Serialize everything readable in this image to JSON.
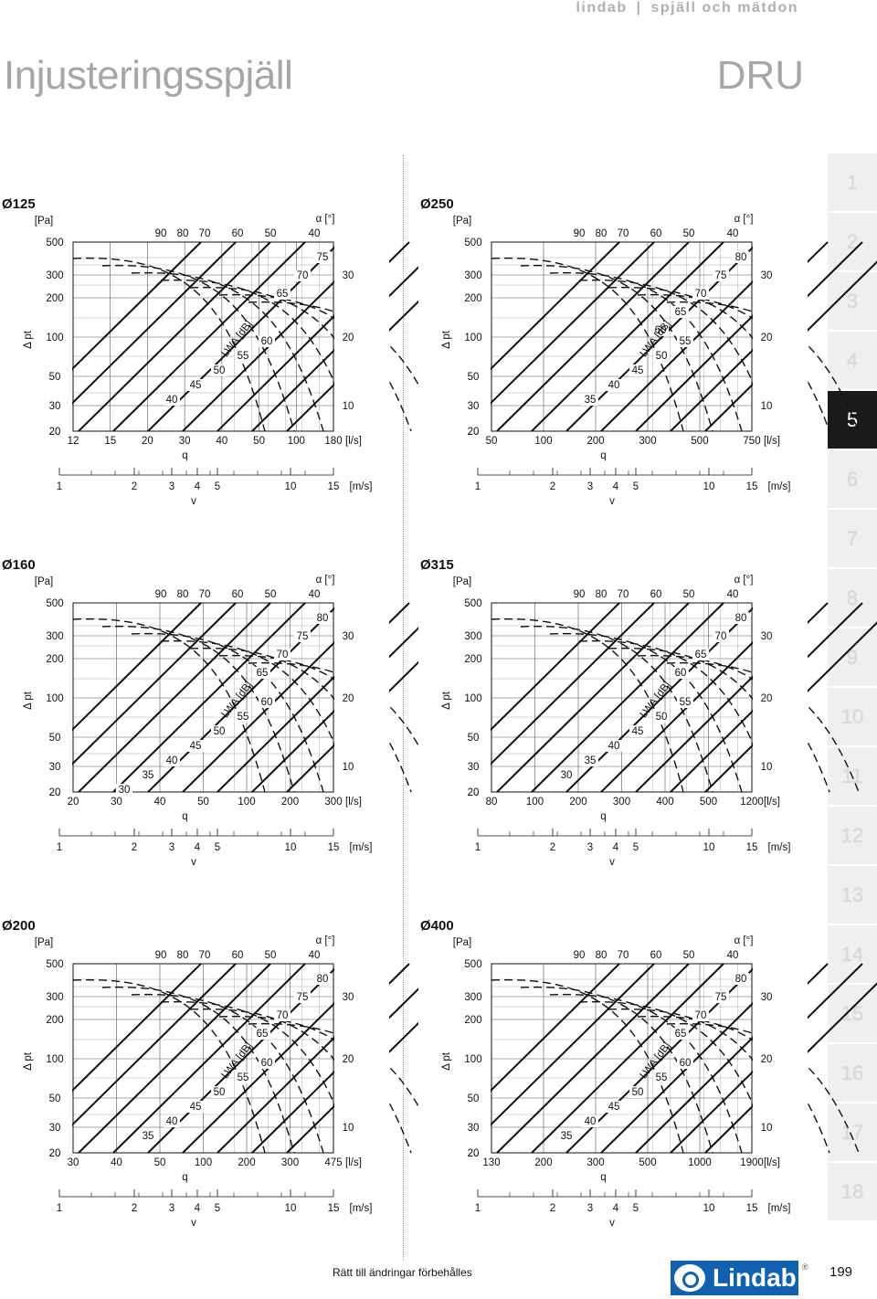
{
  "header": {
    "brand": "lindab",
    "sep": "|",
    "section": "spjäll och mätdon"
  },
  "title": "Injusteringsspjäll",
  "model": "DRU",
  "tabs": [
    "1",
    "2",
    "3",
    "4",
    "5",
    "6",
    "7",
    "8",
    "9",
    "10",
    "11",
    "12",
    "13",
    "14",
    "15",
    "16",
    "17",
    "18"
  ],
  "active_tab": "5",
  "footer": {
    "note": "Rätt till ändringar förbehålles",
    "logo": "Lindab",
    "reg": "®",
    "page": "199"
  },
  "chart_data": [
    {
      "type": "line",
      "title": "Ø125",
      "ylabel": "[Pa]",
      "ylabel_side": "Δ pt",
      "xlabel": "q",
      "xunit": "[l/s]",
      "vlabel": "v",
      "vunit": "[m/s]",
      "alpha_label": "α [°]",
      "lwa_label": "LWA [dB]",
      "y_ticks": [
        "500",
        "300",
        "200",
        "100",
        "50",
        "30",
        "20"
      ],
      "x_ticks": [
        "12",
        "15",
        "20",
        "30",
        "40",
        "50",
        "100",
        "180"
      ],
      "v_ticks": [
        "1",
        "2",
        "3",
        "4",
        "5",
        "10",
        "15"
      ],
      "alpha_ticks": [
        "90",
        "80",
        "70",
        "60",
        "50",
        "40"
      ],
      "alpha_inner": [
        "75",
        "70",
        "65"
      ],
      "lwa_ticks": [
        "60",
        "55",
        "50",
        "45",
        "40"
      ],
      "right_ticks": [
        "30",
        "20",
        "10"
      ]
    },
    {
      "type": "line",
      "title": "Ø250",
      "ylabel": "[Pa]",
      "ylabel_side": "Δ pt",
      "xlabel": "q",
      "xunit": "[l/s]",
      "vlabel": "v",
      "vunit": "[m/s]",
      "alpha_label": "α [°]",
      "lwa_label": "LWA [dB]",
      "y_ticks": [
        "500",
        "300",
        "200",
        "100",
        "50",
        "30",
        "20"
      ],
      "x_ticks": [
        "50",
        "100",
        "200",
        "300",
        "500",
        "750"
      ],
      "v_ticks": [
        "1",
        "2",
        "3",
        "4",
        "5",
        "10",
        "15"
      ],
      "alpha_ticks": [
        "90",
        "80",
        "70",
        "60",
        "50",
        "40"
      ],
      "alpha_inner": [
        "80",
        "75",
        "70",
        "65",
        "60"
      ],
      "lwa_ticks": [
        "55",
        "50",
        "45",
        "40",
        "35"
      ],
      "right_ticks": [
        "30",
        "20",
        "10"
      ]
    },
    {
      "type": "line",
      "title": "Ø160",
      "ylabel": "[Pa]",
      "ylabel_side": "Δ pt",
      "xlabel": "q",
      "xunit": "[l/s]",
      "vlabel": "v",
      "vunit": "[m/s]",
      "alpha_label": "α [°]",
      "lwa_label": "LWA [dB]",
      "y_ticks": [
        "500",
        "300",
        "200",
        "100",
        "50",
        "30",
        "20"
      ],
      "x_ticks": [
        "20",
        "30",
        "40",
        "50",
        "100",
        "200",
        "300"
      ],
      "v_ticks": [
        "1",
        "2",
        "3",
        "4",
        "5",
        "10",
        "15"
      ],
      "alpha_ticks": [
        "90",
        "80",
        "70",
        "60",
        "50",
        "40"
      ],
      "alpha_inner": [
        "80",
        "75",
        "70",
        "65"
      ],
      "lwa_ticks": [
        "60",
        "55",
        "50",
        "45",
        "40",
        "35",
        "30"
      ],
      "right_ticks": [
        "30",
        "20",
        "10"
      ]
    },
    {
      "type": "line",
      "title": "Ø315",
      "ylabel": "[Pa]",
      "ylabel_side": "Δ pt",
      "xlabel": "q",
      "xunit": "[l/s]",
      "vlabel": "v",
      "vunit": "[m/s]",
      "alpha_label": "α [°]",
      "lwa_label": "LWA [dB]",
      "y_ticks": [
        "500",
        "300",
        "200",
        "100",
        "50",
        "30",
        "20"
      ],
      "x_ticks": [
        "80",
        "100",
        "200",
        "300",
        "400",
        "500",
        "1200"
      ],
      "v_ticks": [
        "1",
        "2",
        "3",
        "4",
        "5",
        "10",
        "15"
      ],
      "alpha_ticks": [
        "90",
        "80",
        "70",
        "60",
        "50",
        "40"
      ],
      "alpha_inner": [
        "80",
        "70",
        "65",
        "60"
      ],
      "lwa_ticks": [
        "55",
        "50",
        "45",
        "40",
        "35",
        "30"
      ],
      "right_ticks": [
        "30",
        "20",
        "10"
      ]
    },
    {
      "type": "line",
      "title": "Ø200",
      "ylabel": "[Pa]",
      "ylabel_side": "Δ pt",
      "xlabel": "q",
      "xunit": "[l/s]",
      "vlabel": "v",
      "vunit": "[m/s]",
      "alpha_label": "α [°]",
      "lwa_label": "LWA [dB]",
      "y_ticks": [
        "500",
        "300",
        "200",
        "100",
        "50",
        "30",
        "20"
      ],
      "x_ticks": [
        "30",
        "40",
        "50",
        "100",
        "200",
        "300",
        "475"
      ],
      "v_ticks": [
        "1",
        "2",
        "3",
        "4",
        "5",
        "10",
        "15"
      ],
      "alpha_ticks": [
        "90",
        "80",
        "70",
        "60",
        "50",
        "40"
      ],
      "alpha_inner": [
        "80",
        "75",
        "70",
        "65"
      ],
      "lwa_ticks": [
        "60",
        "55",
        "50",
        "45",
        "40",
        "35"
      ],
      "right_ticks": [
        "30",
        "20",
        "10"
      ]
    },
    {
      "type": "line",
      "title": "Ø400",
      "ylabel": "[Pa]",
      "ylabel_side": "Δ pt",
      "xlabel": "q",
      "xunit": "[l/s]",
      "vlabel": "v",
      "vunit": "[m/s]",
      "alpha_label": "α [°]",
      "lwa_label": "LWA [dB]",
      "y_ticks": [
        "500",
        "300",
        "200",
        "100",
        "50",
        "30",
        "20"
      ],
      "x_ticks": [
        "130",
        "200",
        "300",
        "500",
        "1000",
        "1900"
      ],
      "v_ticks": [
        "1",
        "2",
        "3",
        "4",
        "5",
        "10",
        "15"
      ],
      "alpha_ticks": [
        "90",
        "80",
        "70",
        "60",
        "50",
        "40"
      ],
      "alpha_inner": [
        "80",
        "75",
        "70",
        "65"
      ],
      "lwa_ticks": [
        "60",
        "55",
        "50",
        "45",
        "40",
        "35"
      ],
      "right_ticks": [
        "30",
        "20",
        "10"
      ]
    }
  ]
}
